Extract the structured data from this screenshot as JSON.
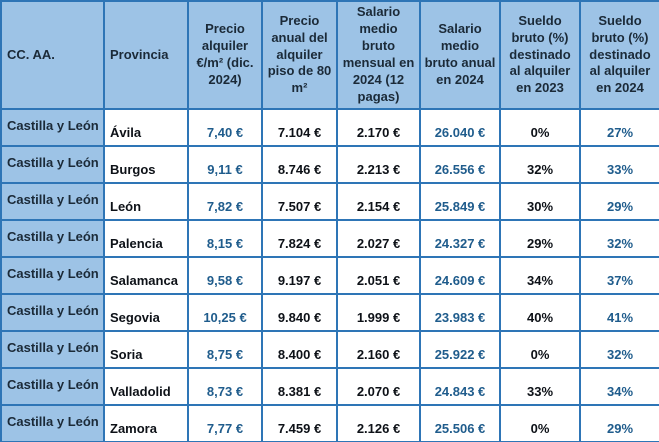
{
  "colors": {
    "header_bg": "#9dc3e6",
    "border": "#2e75b6",
    "text_dark": "#1b2a38",
    "text_black": "#0d1117",
    "text_blue": "#1f5c8c",
    "cell_bg": "#ffffff"
  },
  "chart_data": {
    "type": "table",
    "title": "",
    "columns": [
      "CC. AA.",
      "Provincia",
      "Precio alquiler €/m² (dic. 2024)",
      "Precio anual del alquiler piso de 80 m²",
      "Salario medio bruto mensual en 2024 (12 pagas)",
      "Salario medio bruto anual en 2024",
      "Sueldo bruto (%) destinado al alquiler en 2023",
      "Sueldo bruto (%) destinado al alquiler en 2024"
    ],
    "rows": [
      [
        "Castilla y León",
        "Ávila",
        "7,40 €",
        "7.104 €",
        "2.170 €",
        "26.040 €",
        "0%",
        "27%"
      ],
      [
        "Castilla y León",
        "Burgos",
        "9,11 €",
        "8.746 €",
        "2.213 €",
        "26.556 €",
        "32%",
        "33%"
      ],
      [
        "Castilla y León",
        "León",
        "7,82 €",
        "7.507 €",
        "2.154 €",
        "25.849 €",
        "30%",
        "29%"
      ],
      [
        "Castilla y León",
        "Palencia",
        "8,15 €",
        "7.824 €",
        "2.027 €",
        "24.327 €",
        "29%",
        "32%"
      ],
      [
        "Castilla y León",
        "Salamanca",
        "9,58 €",
        "9.197 €",
        "2.051 €",
        "24.609 €",
        "34%",
        "37%"
      ],
      [
        "Castilla y León",
        "Segovia",
        "10,25 €",
        "9.840 €",
        "1.999 €",
        "23.983 €",
        "40%",
        "41%"
      ],
      [
        "Castilla y León",
        "Soria",
        "8,75 €",
        "8.400 €",
        "2.160 €",
        "25.922 €",
        "0%",
        "32%"
      ],
      [
        "Castilla y León",
        "Valladolid",
        "8,73 €",
        "8.381 €",
        "2.070 €",
        "24.843 €",
        "33%",
        "34%"
      ],
      [
        "Castilla y León",
        "Zamora",
        "7,77 €",
        "7.459 €",
        "2.126 €",
        "25.506 €",
        "0%",
        "29%"
      ]
    ]
  }
}
